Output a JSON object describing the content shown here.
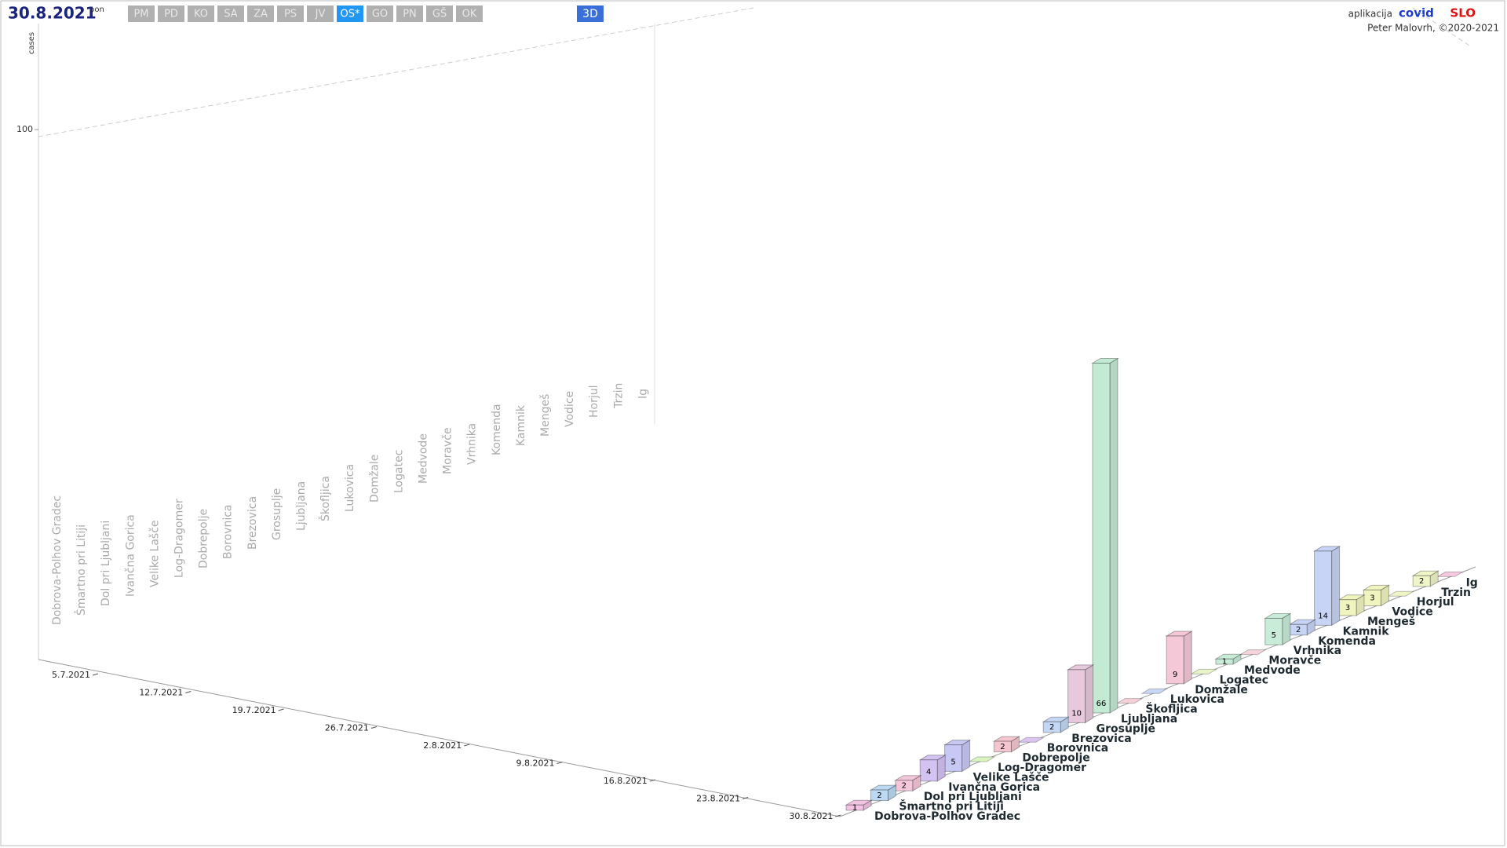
{
  "header": {
    "date": "30.8.2021",
    "weekday": "pon",
    "buttons": [
      {
        "label": "PM",
        "active": false
      },
      {
        "label": "PD",
        "active": false
      },
      {
        "label": "KO",
        "active": false
      },
      {
        "label": "SA",
        "active": false
      },
      {
        "label": "ZA",
        "active": false
      },
      {
        "label": "PS",
        "active": false
      },
      {
        "label": "JV",
        "active": false
      },
      {
        "label": "OS*",
        "active": true
      },
      {
        "label": "GO",
        "active": false
      },
      {
        "label": "PN",
        "active": false
      },
      {
        "label": "GŠ",
        "active": false
      },
      {
        "label": "OK",
        "active": false
      }
    ],
    "view_button": "3D"
  },
  "credits": {
    "app": "aplikacija",
    "brand": "covid",
    "brand_suffix": "SLO",
    "author": "Peter Malovrh, ©2020-2021"
  },
  "chart_data": {
    "type": "bar3d",
    "y_label": "cases",
    "ylim": [
      0,
      120
    ],
    "yticks": [
      100
    ],
    "dates": [
      "5.7.2021",
      "12.7.2021",
      "19.7.2021",
      "26.7.2021",
      "2.8.2021",
      "9.8.2021",
      "16.8.2021",
      "23.8.2021",
      "30.8.2021"
    ],
    "categories": [
      "Dobrova-Polhov Gradec",
      "Šmartno pri Litiji",
      "Dol pri Ljubljani",
      "Ivančna Gorica",
      "Velike Lašče",
      "Log-Dragomer",
      "Dobrepolje",
      "Borovnica",
      "Brezovica",
      "Grosuplje",
      "Ljubljana",
      "Škofljica",
      "Lukovica",
      "Domžale",
      "Logatec",
      "Medvode",
      "Moravče",
      "Vrhnika",
      "Komenda",
      "Kamnik",
      "Mengeš",
      "Vodice",
      "Horjul",
      "Trzin",
      "Ig"
    ],
    "values": [
      1,
      2,
      2,
      4,
      5,
      0,
      2,
      0,
      2,
      10,
      66,
      0,
      0,
      9,
      0,
      1,
      0,
      5,
      2,
      14,
      3,
      3,
      0,
      2,
      0
    ],
    "colors": [
      "#f2c4e4",
      "#bcd8f2",
      "#f5c7da",
      "#d4c2f2",
      "#c8c8f5",
      "#d8f5c0",
      "#f5c6d0",
      "#dcc4f0",
      "#c4d8f5",
      "#e8c8dc",
      "#c3ead3",
      "#f5d0d8",
      "#c8d8f5",
      "#f5c8d8",
      "#e8f5c8",
      "#c8ecd8",
      "#f5d4dc",
      "#c8ecd8",
      "#c8d4f5",
      "#c8d4f5",
      "#f0f5c0",
      "#f0f5c0",
      "#f0f5c8",
      "#f0f5c8",
      "#f5c8e0"
    ]
  }
}
